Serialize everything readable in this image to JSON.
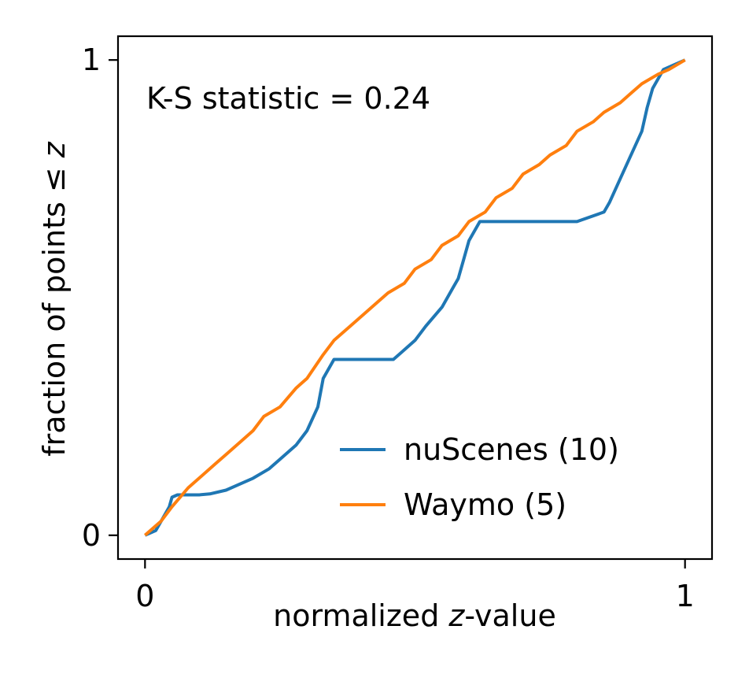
{
  "chart_data": {
    "type": "line",
    "title": "",
    "xlabel_main": "normalized ",
    "xlabel_var": "z",
    "xlabel_suffix": "-value",
    "ylabel_main": "fraction of points  ≤ ",
    "ylabel_var": "z",
    "xlim": [
      -0.05,
      1.05
    ],
    "ylim": [
      -0.05,
      1.05
    ],
    "xticks": [
      {
        "value": 0,
        "label": "0"
      },
      {
        "value": 1,
        "label": "1"
      }
    ],
    "yticks": [
      {
        "value": 0,
        "label": "0"
      },
      {
        "value": 1,
        "label": "1"
      }
    ],
    "grid": false,
    "legend_position": "lower-right",
    "annotation": "K-S statistic = 0.24",
    "series": [
      {
        "name": "nuScenes (10)",
        "color": "#1f77b4",
        "x": [
          0,
          0.02,
          0.03,
          0.045,
          0.05,
          0.06,
          0.1,
          0.12,
          0.15,
          0.18,
          0.2,
          0.23,
          0.25,
          0.28,
          0.3,
          0.32,
          0.33,
          0.34,
          0.35,
          0.37,
          0.4,
          0.43,
          0.46,
          0.48,
          0.5,
          0.52,
          0.55,
          0.57,
          0.58,
          0.59,
          0.6,
          0.62,
          0.65,
          0.7,
          0.75,
          0.78,
          0.8,
          0.85,
          0.86,
          0.88,
          0.9,
          0.92,
          0.93,
          0.94,
          0.95,
          0.96,
          0.98,
          1.0
        ],
        "y": [
          0,
          0.01,
          0.03,
          0.06,
          0.08,
          0.085,
          0.085,
          0.087,
          0.095,
          0.11,
          0.12,
          0.14,
          0.16,
          0.19,
          0.22,
          0.27,
          0.33,
          0.35,
          0.37,
          0.37,
          0.37,
          0.37,
          0.37,
          0.39,
          0.41,
          0.44,
          0.48,
          0.52,
          0.54,
          0.58,
          0.62,
          0.66,
          0.66,
          0.66,
          0.66,
          0.66,
          0.66,
          0.68,
          0.7,
          0.75,
          0.8,
          0.85,
          0.9,
          0.94,
          0.96,
          0.98,
          0.99,
          1.0
        ]
      },
      {
        "name": "Waymo (5)",
        "color": "#ff7f0e",
        "x": [
          0,
          0.03,
          0.05,
          0.08,
          0.1,
          0.13,
          0.15,
          0.18,
          0.2,
          0.22,
          0.25,
          0.28,
          0.3,
          0.33,
          0.35,
          0.38,
          0.4,
          0.43,
          0.45,
          0.48,
          0.5,
          0.53,
          0.55,
          0.58,
          0.6,
          0.63,
          0.65,
          0.68,
          0.7,
          0.73,
          0.75,
          0.78,
          0.8,
          0.83,
          0.85,
          0.88,
          0.9,
          0.92,
          0.95,
          0.97,
          1.0
        ],
        "y": [
          0,
          0.03,
          0.06,
          0.1,
          0.12,
          0.15,
          0.17,
          0.2,
          0.22,
          0.25,
          0.27,
          0.31,
          0.33,
          0.38,
          0.41,
          0.44,
          0.46,
          0.49,
          0.51,
          0.53,
          0.56,
          0.58,
          0.61,
          0.63,
          0.66,
          0.68,
          0.71,
          0.73,
          0.76,
          0.78,
          0.8,
          0.82,
          0.85,
          0.87,
          0.89,
          0.91,
          0.93,
          0.95,
          0.97,
          0.98,
          1.0
        ]
      }
    ]
  }
}
